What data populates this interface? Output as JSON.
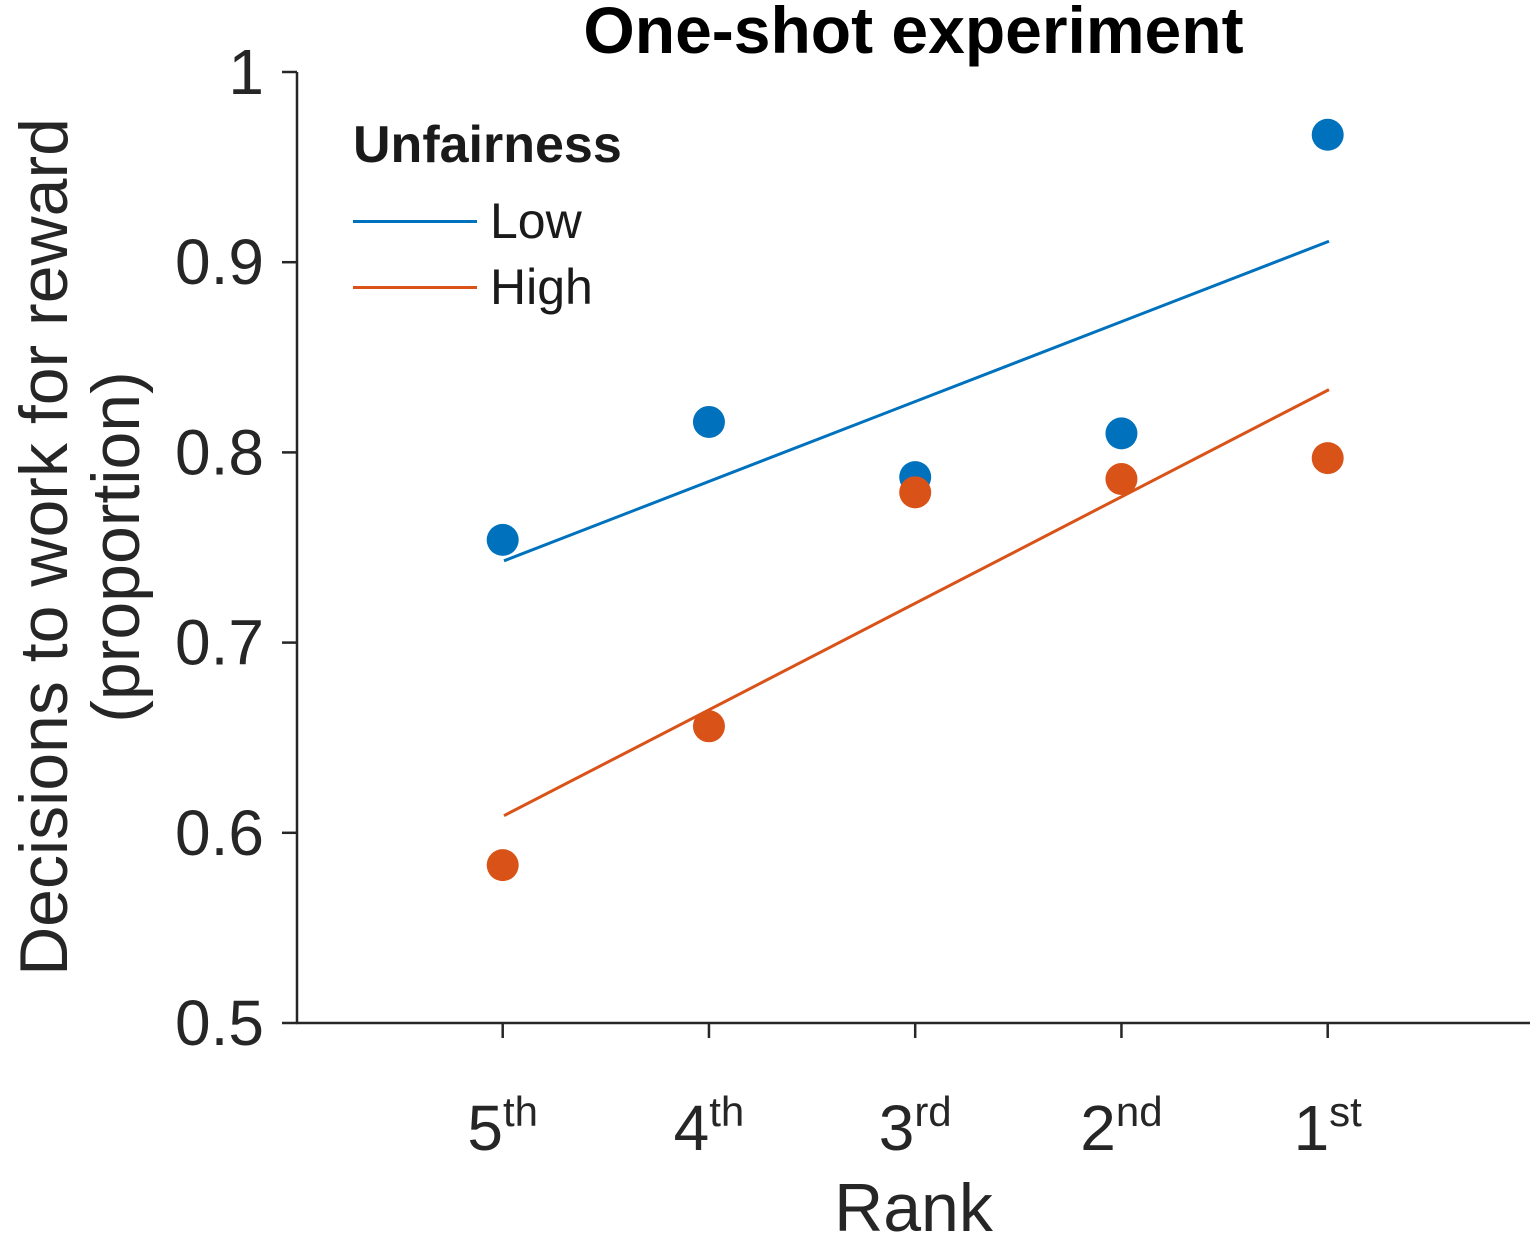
{
  "title": "One-shot experiment",
  "y_axis": {
    "label_line1": "Decisions to work for reward",
    "label_line2": "(proportion)",
    "tick_labels": [
      "0.5",
      "0.6",
      "0.7",
      "0.8",
      "0.9",
      "1"
    ]
  },
  "x_axis": {
    "label": "Rank",
    "categories": [
      {
        "base": "5",
        "sup": "th"
      },
      {
        "base": "4",
        "sup": "th"
      },
      {
        "base": "3",
        "sup": "rd"
      },
      {
        "base": "2",
        "sup": "nd"
      },
      {
        "base": "1",
        "sup": "st"
      }
    ]
  },
  "legend": {
    "title": "Unfairness",
    "items": [
      {
        "label": "Low",
        "color": "#0072BD"
      },
      {
        "label": "High",
        "color": "#D95319"
      }
    ]
  },
  "colors": {
    "low": "#0072BD",
    "high": "#D95319",
    "axis": "#262626",
    "title": "#000000"
  },
  "chart_data": {
    "type": "scatter",
    "title": "One-shot experiment",
    "xlabel": "Rank",
    "ylabel": "Decisions to work for reward (proportion)",
    "categories": [
      "5th",
      "4th",
      "3rd",
      "2nd",
      "1st"
    ],
    "ylim": [
      0.5,
      1.0
    ],
    "yticks": [
      0.5,
      0.6,
      0.7,
      0.8,
      0.9,
      1.0
    ],
    "grid": false,
    "legend_position": "top-left-inside",
    "series": [
      {
        "name": "Low",
        "color": "#0072BD",
        "marker": "circle",
        "values": [
          0.754,
          0.816,
          0.787,
          0.81,
          0.967
        ],
        "trend_line": {
          "y_start": 0.743,
          "y_end": 0.911
        }
      },
      {
        "name": "High",
        "color": "#D95319",
        "marker": "circle",
        "values": [
          0.583,
          0.656,
          0.779,
          0.786,
          0.797
        ],
        "trend_line": {
          "y_start": 0.609,
          "y_end": 0.833
        }
      }
    ]
  }
}
